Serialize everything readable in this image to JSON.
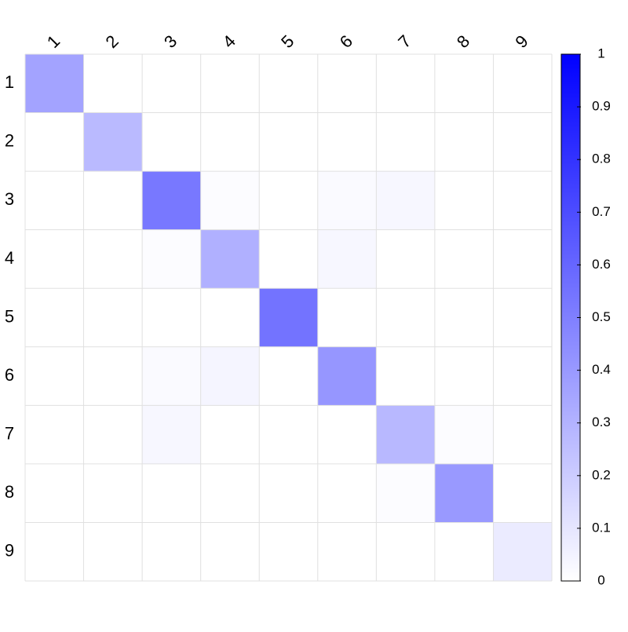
{
  "chart_data": {
    "type": "heatmap",
    "title": "",
    "xlabel": "",
    "ylabel": "",
    "x_categories": [
      "1",
      "2",
      "3",
      "4",
      "5",
      "6",
      "7",
      "8",
      "9"
    ],
    "y_categories": [
      "1",
      "2",
      "3",
      "4",
      "5",
      "6",
      "7",
      "8",
      "9"
    ],
    "values": [
      [
        0.36,
        0.0,
        0.0,
        0.0,
        0.0,
        0.0,
        0.0,
        0.0,
        0.0
      ],
      [
        0.0,
        0.27,
        0.0,
        0.0,
        0.0,
        0.0,
        0.0,
        0.0,
        0.0
      ],
      [
        0.0,
        0.0,
        0.53,
        0.01,
        0.0,
        0.02,
        0.03,
        0.0,
        0.0
      ],
      [
        0.0,
        0.0,
        0.01,
        0.31,
        0.0,
        0.03,
        0.0,
        0.0,
        0.0
      ],
      [
        0.0,
        0.0,
        0.0,
        0.0,
        0.55,
        0.0,
        0.0,
        0.0,
        0.0
      ],
      [
        0.0,
        0.0,
        0.02,
        0.04,
        0.0,
        0.41,
        0.0,
        0.0,
        0.0
      ],
      [
        0.0,
        0.0,
        0.03,
        0.0,
        0.0,
        0.0,
        0.28,
        0.01,
        0.0
      ],
      [
        0.0,
        0.0,
        0.0,
        0.0,
        0.0,
        0.0,
        0.01,
        0.4,
        0.0
      ],
      [
        0.0,
        0.0,
        0.0,
        0.0,
        0.0,
        0.0,
        0.0,
        0.0,
        0.08
      ]
    ],
    "colorbar": {
      "range": [
        0,
        1
      ],
      "ticks": [
        "0",
        "0.1",
        "0.2",
        "0.3",
        "0.4",
        "0.5",
        "0.6",
        "0.7",
        "0.8",
        "0.9",
        "1"
      ],
      "color_low": "#ffffff",
      "color_high": "#0000ff"
    },
    "grid": true,
    "grid_color": "#e0e0e0",
    "x_tick_position": "top",
    "x_tick_rotation_deg": -45,
    "legend": "right colorbar"
  }
}
